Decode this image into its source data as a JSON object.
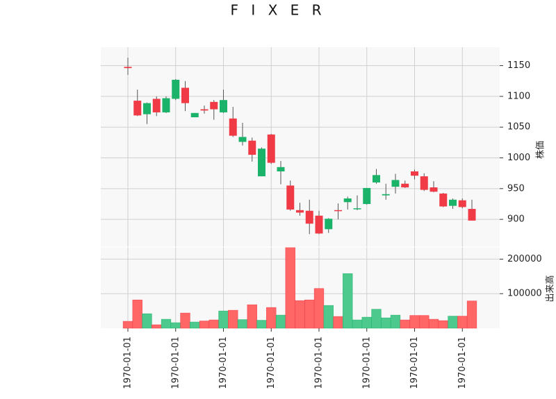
{
  "chart_data": {
    "type": "candlestick",
    "title": "F I X E R",
    "price_ylabel": "株価",
    "volume_ylabel": "出来高",
    "colors": {
      "up": "#1bb36a",
      "down": "#f03a46",
      "up_volume": "#4dc98d",
      "down_volume": "#ff6666",
      "grid": "#d0d0d0",
      "panel_bg": "#f8f8f8",
      "wick": "#555555"
    },
    "price_ylim": [
      855,
      1180
    ],
    "price_ticks": [
      "900",
      "950",
      "1000",
      "1050",
      "1100",
      "1150"
    ],
    "volume_ylim": [
      0,
      235000
    ],
    "volume_ticks": [
      "100000",
      "200000"
    ],
    "x_tick_labels": [
      "1970-01-01",
      "1970-01-01",
      "1970-01-01",
      "1970-01-01",
      "1970-01-01",
      "1970-01-01",
      "1970-01-01",
      "1970-01-01"
    ],
    "x_tick_indices": [
      0,
      5,
      10,
      15,
      20,
      25,
      30,
      35
    ],
    "candles": [
      {
        "open": 1148,
        "high": 1163,
        "low": 1135,
        "close": 1146,
        "volume": 20000
      },
      {
        "open": 1093,
        "high": 1111,
        "low": 1068,
        "close": 1069,
        "volume": 82000
      },
      {
        "open": 1071,
        "high": 1090,
        "low": 1055,
        "close": 1089,
        "volume": 42000
      },
      {
        "open": 1096,
        "high": 1100,
        "low": 1068,
        "close": 1074,
        "volume": 10000
      },
      {
        "open": 1074,
        "high": 1100,
        "low": 1073,
        "close": 1097,
        "volume": 26000
      },
      {
        "open": 1096,
        "high": 1128,
        "low": 1094,
        "close": 1127,
        "volume": 16000
      },
      {
        "open": 1114,
        "high": 1125,
        "low": 1076,
        "close": 1089,
        "volume": 44000
      },
      {
        "open": 1066,
        "high": 1073,
        "low": 1066,
        "close": 1073,
        "volume": 18000
      },
      {
        "open": 1079,
        "high": 1085,
        "low": 1072,
        "close": 1077,
        "volume": 21000
      },
      {
        "open": 1091,
        "high": 1094,
        "low": 1062,
        "close": 1079,
        "volume": 24000
      },
      {
        "open": 1074,
        "high": 1111,
        "low": 1073,
        "close": 1094,
        "volume": 50000
      },
      {
        "open": 1064,
        "high": 1083,
        "low": 1034,
        "close": 1036,
        "volume": 52000
      },
      {
        "open": 1026,
        "high": 1057,
        "low": 1020,
        "close": 1034,
        "volume": 25000
      },
      {
        "open": 1028,
        "high": 1033,
        "low": 994,
        "close": 1005,
        "volume": 68000
      },
      {
        "open": 970,
        "high": 1017,
        "low": 970,
        "close": 1015,
        "volume": 23000
      },
      {
        "open": 1038,
        "high": 1039,
        "low": 990,
        "close": 992,
        "volume": 60000
      },
      {
        "open": 978,
        "high": 995,
        "low": 957,
        "close": 985,
        "volume": 38000
      },
      {
        "open": 955,
        "high": 963,
        "low": 914,
        "close": 916,
        "volume": 235000
      },
      {
        "open": 915,
        "high": 927,
        "low": 906,
        "close": 911,
        "volume": 80000
      },
      {
        "open": 914,
        "high": 932,
        "low": 876,
        "close": 893,
        "volume": 82000
      },
      {
        "open": 906,
        "high": 914,
        "low": 876,
        "close": 877,
        "volume": 115000
      },
      {
        "open": 884,
        "high": 902,
        "low": 878,
        "close": 901,
        "volume": 66000
      },
      {
        "open": 915,
        "high": 926,
        "low": 900,
        "close": 914,
        "volume": 34000
      },
      {
        "open": 928,
        "high": 937,
        "low": 916,
        "close": 934,
        "volume": 158000
      },
      {
        "open": 918,
        "high": 939,
        "low": 915,
        "close": 918,
        "volume": 24000
      },
      {
        "open": 925,
        "high": 951,
        "low": 924,
        "close": 951,
        "volume": 32000
      },
      {
        "open": 960,
        "high": 982,
        "low": 958,
        "close": 972,
        "volume": 55000
      },
      {
        "open": 939,
        "high": 958,
        "low": 932,
        "close": 941,
        "volume": 30000
      },
      {
        "open": 953,
        "high": 974,
        "low": 942,
        "close": 964,
        "volume": 38000
      },
      {
        "open": 958,
        "high": 963,
        "low": 951,
        "close": 952,
        "volume": 24000
      },
      {
        "open": 978,
        "high": 981,
        "low": 965,
        "close": 971,
        "volume": 37000
      },
      {
        "open": 970,
        "high": 975,
        "low": 946,
        "close": 948,
        "volume": 37000
      },
      {
        "open": 952,
        "high": 962,
        "low": 944,
        "close": 945,
        "volume": 26000
      },
      {
        "open": 942,
        "high": 943,
        "low": 920,
        "close": 921,
        "volume": 22000
      },
      {
        "open": 922,
        "high": 934,
        "low": 917,
        "close": 932,
        "volume": 35000
      },
      {
        "open": 931,
        "high": 934,
        "low": 918,
        "close": 920,
        "volume": 35000
      },
      {
        "open": 917,
        "high": 932,
        "low": 898,
        "close": 898,
        "volume": 79000
      }
    ]
  }
}
